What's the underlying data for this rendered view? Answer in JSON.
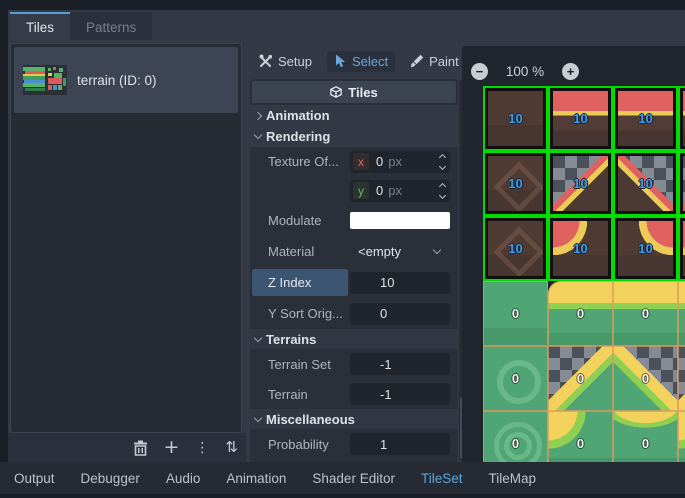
{
  "source_tabs": {
    "tiles": "Tiles",
    "patterns": "Patterns"
  },
  "sources": {
    "selected_item": "terrain (ID: 0)"
  },
  "tools": {
    "setup": "Setup",
    "select": "Select",
    "paint": "Paint"
  },
  "inspector": {
    "title": "Tiles",
    "sections": {
      "animation": "Animation",
      "rendering": "Rendering",
      "terrains": "Terrains",
      "miscellaneous": "Miscellaneous"
    },
    "texture_offset": {
      "label": "Texture Of...",
      "x_axis": "x",
      "y_axis": "y",
      "x_value": "0",
      "y_value": "0",
      "suffix": "px"
    },
    "modulate": {
      "label": "Modulate"
    },
    "material": {
      "label": "Material",
      "value": "<empty"
    },
    "z_index": {
      "label": "Z Index",
      "value": "10"
    },
    "y_sort_origin": {
      "label": "Y Sort Orig...",
      "value": "0"
    },
    "terrain_set": {
      "label": "Terrain Set",
      "value": "-1"
    },
    "terrain": {
      "label": "Terrain",
      "value": "-1"
    },
    "probability": {
      "label": "Probability",
      "value": "1"
    }
  },
  "viewport": {
    "zoom_label": "100 %",
    "zoom_out": "−",
    "zoom_in": "+"
  },
  "atlas": {
    "tiles": [
      {
        "row": 0,
        "col": 0,
        "type": "dirt_plain",
        "label": "10"
      },
      {
        "row": 0,
        "col": 1,
        "type": "dirt_red",
        "label": "10"
      },
      {
        "row": 0,
        "col": 2,
        "type": "dirt_red",
        "label": "10"
      },
      {
        "row": 0,
        "col": 3,
        "type": "dirt_red",
        "label": "10"
      },
      {
        "row": 1,
        "col": 0,
        "type": "dirt_diamond",
        "label": "10"
      },
      {
        "row": 1,
        "col": 1,
        "type": "checker_red_ne",
        "label": "10"
      },
      {
        "row": 1,
        "col": 2,
        "type": "checker_red_nw",
        "label": "10"
      },
      {
        "row": 1,
        "col": 3,
        "type": "checker_red_ne",
        "label": "10"
      },
      {
        "row": 2,
        "col": 0,
        "type": "dirt_diamond",
        "label": "10"
      },
      {
        "row": 2,
        "col": 1,
        "type": "dirt_red_nw",
        "label": "10"
      },
      {
        "row": 2,
        "col": 2,
        "type": "dirt_red_ne",
        "label": "10"
      },
      {
        "row": 2,
        "col": 3,
        "type": "dirt_red_nw",
        "label": "10"
      },
      {
        "row": 3,
        "col": 0,
        "type": "grass_plain",
        "label": "0"
      },
      {
        "row": 3,
        "col": 1,
        "type": "grass_yellow_rounded",
        "label": "0"
      },
      {
        "row": 3,
        "col": 2,
        "type": "grass_yellow",
        "label": "0"
      },
      {
        "row": 3,
        "col": 3,
        "type": "grass_yellow",
        "label": "0"
      },
      {
        "row": 4,
        "col": 0,
        "type": "grass_ring",
        "label": "0"
      },
      {
        "row": 4,
        "col": 1,
        "type": "checker_grass_ne",
        "label": "0"
      },
      {
        "row": 4,
        "col": 2,
        "type": "checker_grass_nw",
        "label": "0"
      },
      {
        "row": 4,
        "col": 3,
        "type": "checker_grass_ne",
        "label": "0"
      },
      {
        "row": 5,
        "col": 0,
        "type": "grass_ring2",
        "label": "0"
      },
      {
        "row": 5,
        "col": 1,
        "type": "grass_corner",
        "label": "0"
      },
      {
        "row": 5,
        "col": 2,
        "type": "grass_dip",
        "label": "0"
      },
      {
        "row": 5,
        "col": 3,
        "type": "grass_corner",
        "label": "0"
      }
    ]
  },
  "bottom_tabs": {
    "items": [
      "Output",
      "Debugger",
      "Audio",
      "Animation",
      "Shader Editor",
      "TileSet",
      "TileMap"
    ],
    "active": "TileSet"
  },
  "colors": {
    "accent_blue": "#569fd6",
    "selection_green": "#00dc00",
    "grid_orange": "#df9a5f",
    "tile_label_blue": "#3f9df0",
    "zindex_highlight": "#3c5573"
  }
}
